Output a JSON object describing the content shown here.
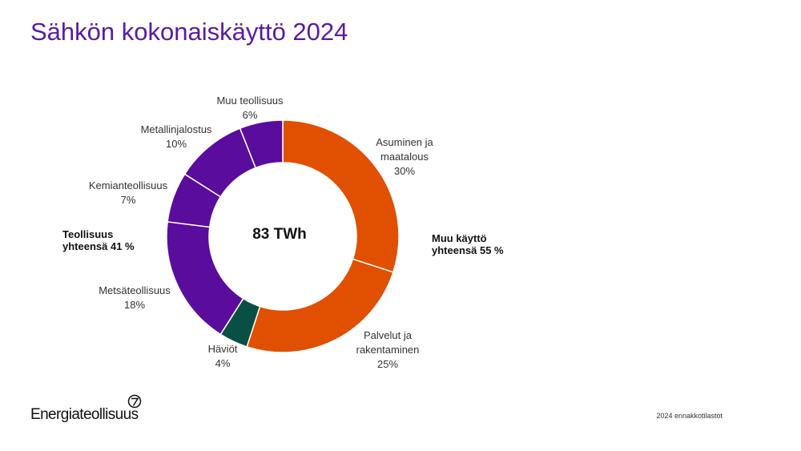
{
  "title": "Sähkön kokonaiskäyttö 2024",
  "chart_data": {
    "type": "pie",
    "variant": "donut",
    "center_label": "83 TWh",
    "start": "top, clockwise",
    "slices": [
      {
        "label": [
          "Asuminen ja",
          "maatalous"
        ],
        "pct_label": "30%",
        "value": 30,
        "color": "#e05000"
      },
      {
        "label": [
          "Palvelut ja",
          "rakentaminen"
        ],
        "pct_label": "25%",
        "value": 25,
        "color": "#e05000"
      },
      {
        "label": [
          "Häviöt"
        ],
        "pct_label": "4%",
        "value": 4,
        "color": "#0a4f44"
      },
      {
        "label": [
          "Metsäteollisuus"
        ],
        "pct_label": "18%",
        "value": 18,
        "color": "#5a0c9d"
      },
      {
        "label": [
          "Kemianteollisuus"
        ],
        "pct_label": "7%",
        "value": 7,
        "color": "#5a0c9d"
      },
      {
        "label": [
          "Metallinjalostus"
        ],
        "pct_label": "10%",
        "value": 10,
        "color": "#5a0c9d"
      },
      {
        "label": [
          "Muu teollisuus"
        ],
        "pct_label": "6%",
        "value": 6,
        "color": "#5a0c9d"
      }
    ],
    "group_labels": [
      {
        "lines": [
          "Muu käyttö",
          "yhteensä 55 %"
        ]
      },
      {
        "lines": [
          "Teollisuus",
          "yhteensä 41 %"
        ]
      }
    ]
  },
  "footer": {
    "brand": "Energiateollisuus",
    "note": "2024 ennakkotilastot"
  }
}
